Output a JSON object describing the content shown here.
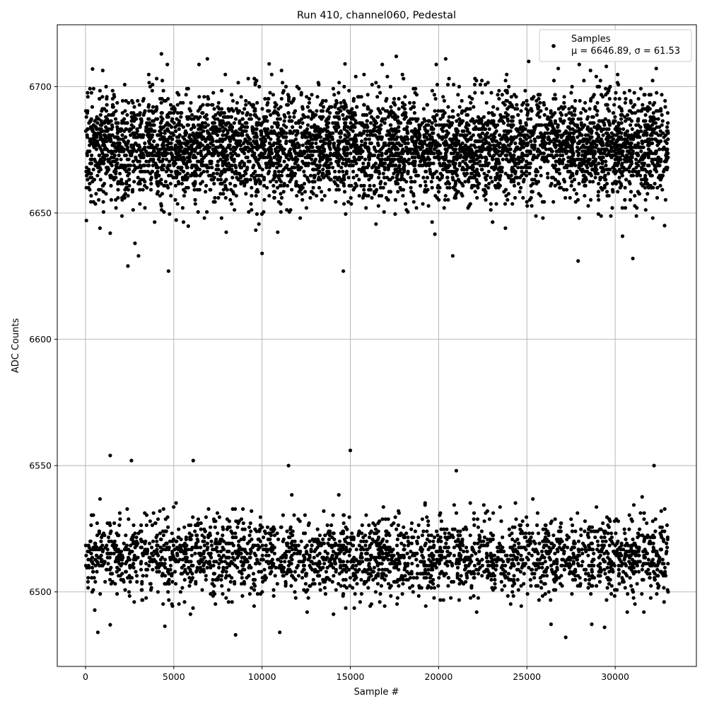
{
  "chart_data": {
    "type": "scatter",
    "title": "Run 410, channel060, Pedestal",
    "xlabel": "Sample #",
    "ylabel": "ADC Counts",
    "xlim": [
      -1600,
      34600
    ],
    "ylim": [
      6470.5,
      6724.5
    ],
    "xticks": [
      0,
      5000,
      10000,
      15000,
      20000,
      25000,
      30000
    ],
    "yticks": [
      6500,
      6550,
      6600,
      6650,
      6700
    ],
    "grid": true,
    "legend_position": "top-right",
    "series": [
      {
        "name": "Samples",
        "color": "#000000",
        "marker": "circle",
        "n_samples": 33000,
        "clusters": [
          {
            "label": "upper band",
            "center": 6676,
            "core_range": [
              6659,
              6693
            ],
            "full_range": [
              6627,
              6713
            ],
            "points": [
              {
                "x": 50,
                "y": 6647
              },
              {
                "x": 400,
                "y": 6707
              },
              {
                "x": 1400,
                "y": 6642
              },
              {
                "x": 2400,
                "y": 6629
              },
              {
                "x": 2800,
                "y": 6638
              },
              {
                "x": 3000,
                "y": 6633
              },
              {
                "x": 4300,
                "y": 6713
              },
              {
                "x": 4700,
                "y": 6627
              },
              {
                "x": 6900,
                "y": 6711
              },
              {
                "x": 10000,
                "y": 6634
              },
              {
                "x": 10400,
                "y": 6709
              },
              {
                "x": 14600,
                "y": 6627
              },
              {
                "x": 14700,
                "y": 6709
              },
              {
                "x": 17600,
                "y": 6712
              },
              {
                "x": 20400,
                "y": 6711
              },
              {
                "x": 20800,
                "y": 6633
              },
              {
                "x": 25100,
                "y": 6710
              },
              {
                "x": 27900,
                "y": 6631
              },
              {
                "x": 29500,
                "y": 6708
              },
              {
                "x": 31000,
                "y": 6632
              },
              {
                "x": 32800,
                "y": 6645
              }
            ]
          },
          {
            "label": "lower band",
            "center": 6514,
            "core_range": [
              6503,
              6528
            ],
            "full_range": [
              6482,
              6556
            ],
            "points": [
              {
                "x": 700,
                "y": 6484
              },
              {
                "x": 1400,
                "y": 6554
              },
              {
                "x": 1400,
                "y": 6487
              },
              {
                "x": 2600,
                "y": 6552
              },
              {
                "x": 6100,
                "y": 6552
              },
              {
                "x": 8500,
                "y": 6483
              },
              {
                "x": 11000,
                "y": 6484
              },
              {
                "x": 11500,
                "y": 6550
              },
              {
                "x": 15000,
                "y": 6556
              },
              {
                "x": 21000,
                "y": 6548
              },
              {
                "x": 27200,
                "y": 6482
              },
              {
                "x": 29400,
                "y": 6486
              },
              {
                "x": 32200,
                "y": 6550
              }
            ]
          }
        ]
      }
    ],
    "legend": {
      "entries": [
        {
          "label": "Samples",
          "stats": "μ = 6646.89, σ = 61.53"
        }
      ]
    }
  }
}
